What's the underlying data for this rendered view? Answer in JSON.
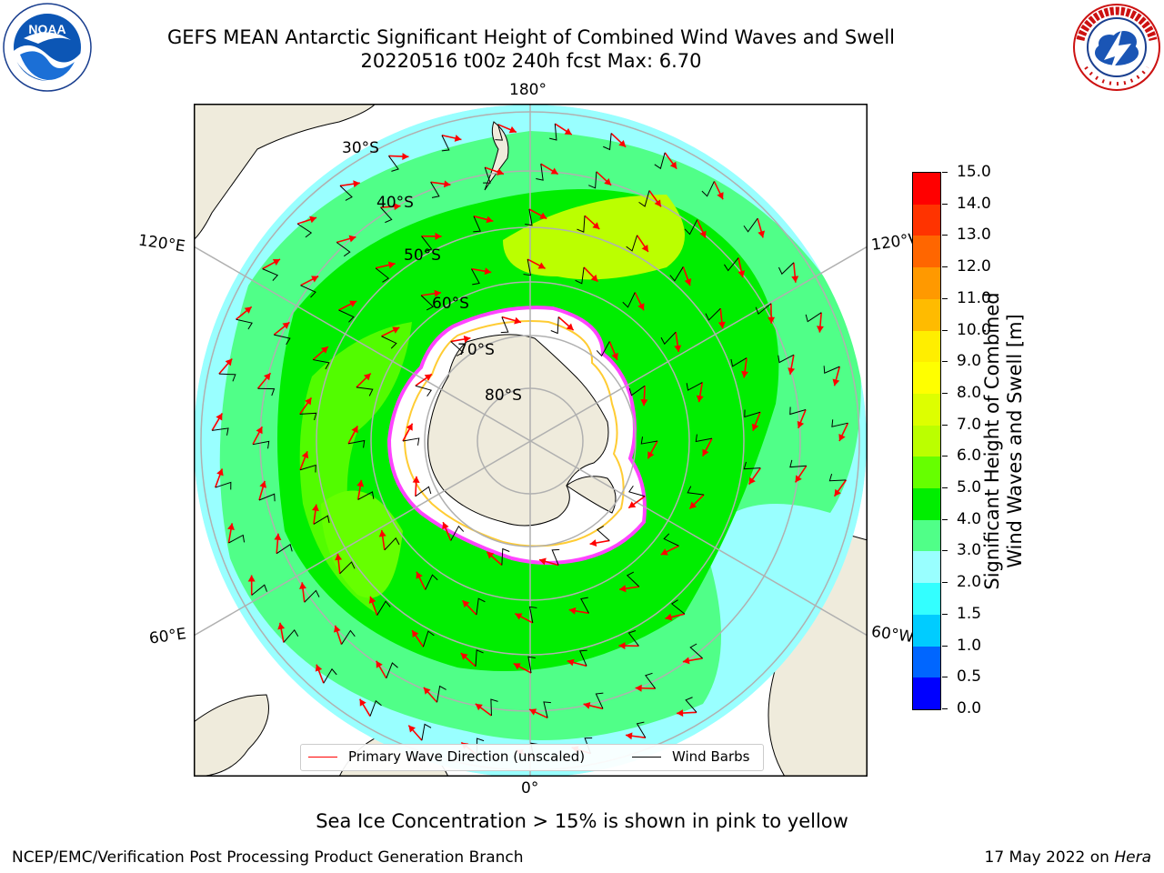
{
  "header": {
    "title_line1": "GEFS MEAN Antarctic Significant Height of Combined Wind Waves and Swell",
    "title_line2": "20220516 t00z 240h fcst   Max: 6.70"
  },
  "logos": {
    "left": {
      "name": "NOAA",
      "text": "NOAA",
      "ring_text": "NATIONAL OCEANIC AND ATMOSPHERIC ADMINISTRATION · U.S. DEPARTMENT OF COMMERCE"
    },
    "right": {
      "name": "National Weather Service",
      "ring_text": "NATIONAL WEATHER SERVICE"
    }
  },
  "map": {
    "projection": "south-polar-stereographic",
    "longitude_labels": {
      "top": "180°",
      "bottom": "0°",
      "left_upper": "120°E",
      "left_lower": "60°E",
      "right_upper": "120°W",
      "right_lower": "60°W"
    },
    "latitude_labels": [
      "30°S",
      "40°S",
      "50°S",
      "60°S",
      "70°S",
      "80°S"
    ],
    "land_color": "#efebdc",
    "ice_color": "#ffffff",
    "legend": {
      "wave_direction": {
        "label": "Primary Wave Direction (unscaled)",
        "color": "#ff0000"
      },
      "wind_barbs": {
        "label": "Wind Barbs",
        "color": "#000000"
      }
    }
  },
  "colorbar": {
    "title_line1": "Significant Height of Combined",
    "title_line2": "Wind Waves and Swell [m]",
    "ticks": [
      "0.0",
      "0.5",
      "1.0",
      "1.5",
      "2.0",
      "3.0",
      "4.0",
      "5.0",
      "6.0",
      "7.0",
      "8.0",
      "9.0",
      "10.0",
      "11.0",
      "12.0",
      "13.0",
      "14.0",
      "15.0"
    ],
    "colors": [
      "#0000ff",
      "#0066ff",
      "#00ccff",
      "#33ffff",
      "#99ffff",
      "#50ff88",
      "#00ee00",
      "#66ff00",
      "#bbff00",
      "#ddff00",
      "#ffff00",
      "#ffee00",
      "#ffbb00",
      "#ff9900",
      "#ff6600",
      "#ff3300",
      "#ff0000"
    ]
  },
  "note": "Sea Ice Concentration > 15% is shown in pink to yellow",
  "footer": {
    "left": "NCEP/EMC/Verification Post Processing Product Generation Branch",
    "right_prefix": "17 May 2022 on ",
    "right_machine": "Hera"
  }
}
